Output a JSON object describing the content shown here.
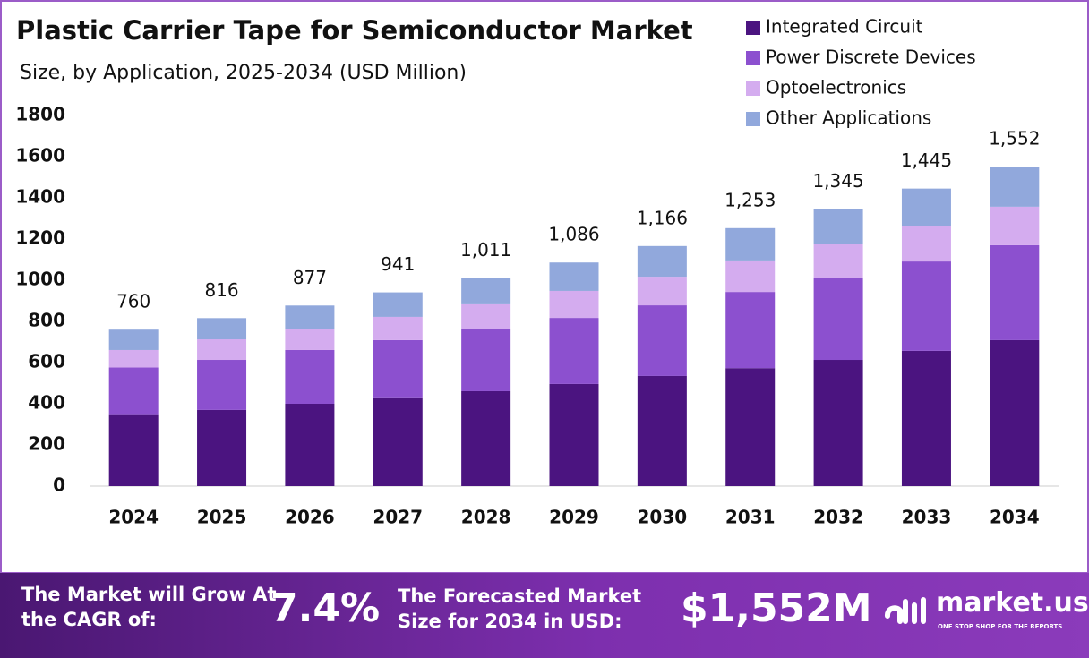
{
  "chart_data": {
    "type": "stacked-bar",
    "title": "Plastic Carrier Tape for Semiconductor Market",
    "subtitle": "Size, by Application, 2025-2034 (USD Million)",
    "categories": [
      "2024",
      "2025",
      "2026",
      "2027",
      "2028",
      "2029",
      "2030",
      "2031",
      "2032",
      "2033",
      "2034"
    ],
    "series": [
      {
        "name": "Integrated Circuit",
        "color": "#4b1480",
        "values": [
          345,
          370,
          400,
          427,
          461,
          496,
          535,
          573,
          613,
          657,
          709
        ]
      },
      {
        "name": "Power Discrete Devices",
        "color": "#8c50cf",
        "values": [
          231,
          243,
          261,
          282,
          300,
          321,
          343,
          370,
          400,
          434,
          461
        ]
      },
      {
        "name": "Optoelectronics",
        "color": "#d4acef",
        "values": [
          85,
          100,
          104,
          113,
          122,
          131,
          139,
          153,
          161,
          170,
          187
        ]
      },
      {
        "name": "Other Applications",
        "color": "#91a8dc",
        "values": [
          99,
          103,
          112,
          119,
          128,
          138,
          149,
          157,
          171,
          184,
          195
        ]
      }
    ],
    "totals": [
      760,
      816,
      877,
      941,
      1011,
      1086,
      1166,
      1253,
      1345,
      1445,
      1552
    ],
    "total_labels": [
      "760",
      "816",
      "877",
      "941",
      "1,011",
      "1,086",
      "1,166",
      "1,253",
      "1,345",
      "1,445",
      "1,552"
    ],
    "ylim": [
      0,
      1800
    ],
    "yticks": [
      0,
      200,
      400,
      600,
      800,
      1000,
      1200,
      1400,
      1600,
      1800
    ],
    "legend": "top-right"
  },
  "banner": {
    "cagr_text": "The Market will Grow At the CAGR of:",
    "cagr": "7.4%",
    "forecast_text": "The Forecasted Market Size for 2034 in USD:",
    "forecast": "$1,552M",
    "logo": "market.us",
    "tagline": "ONE STOP SHOP FOR THE REPORTS"
  }
}
